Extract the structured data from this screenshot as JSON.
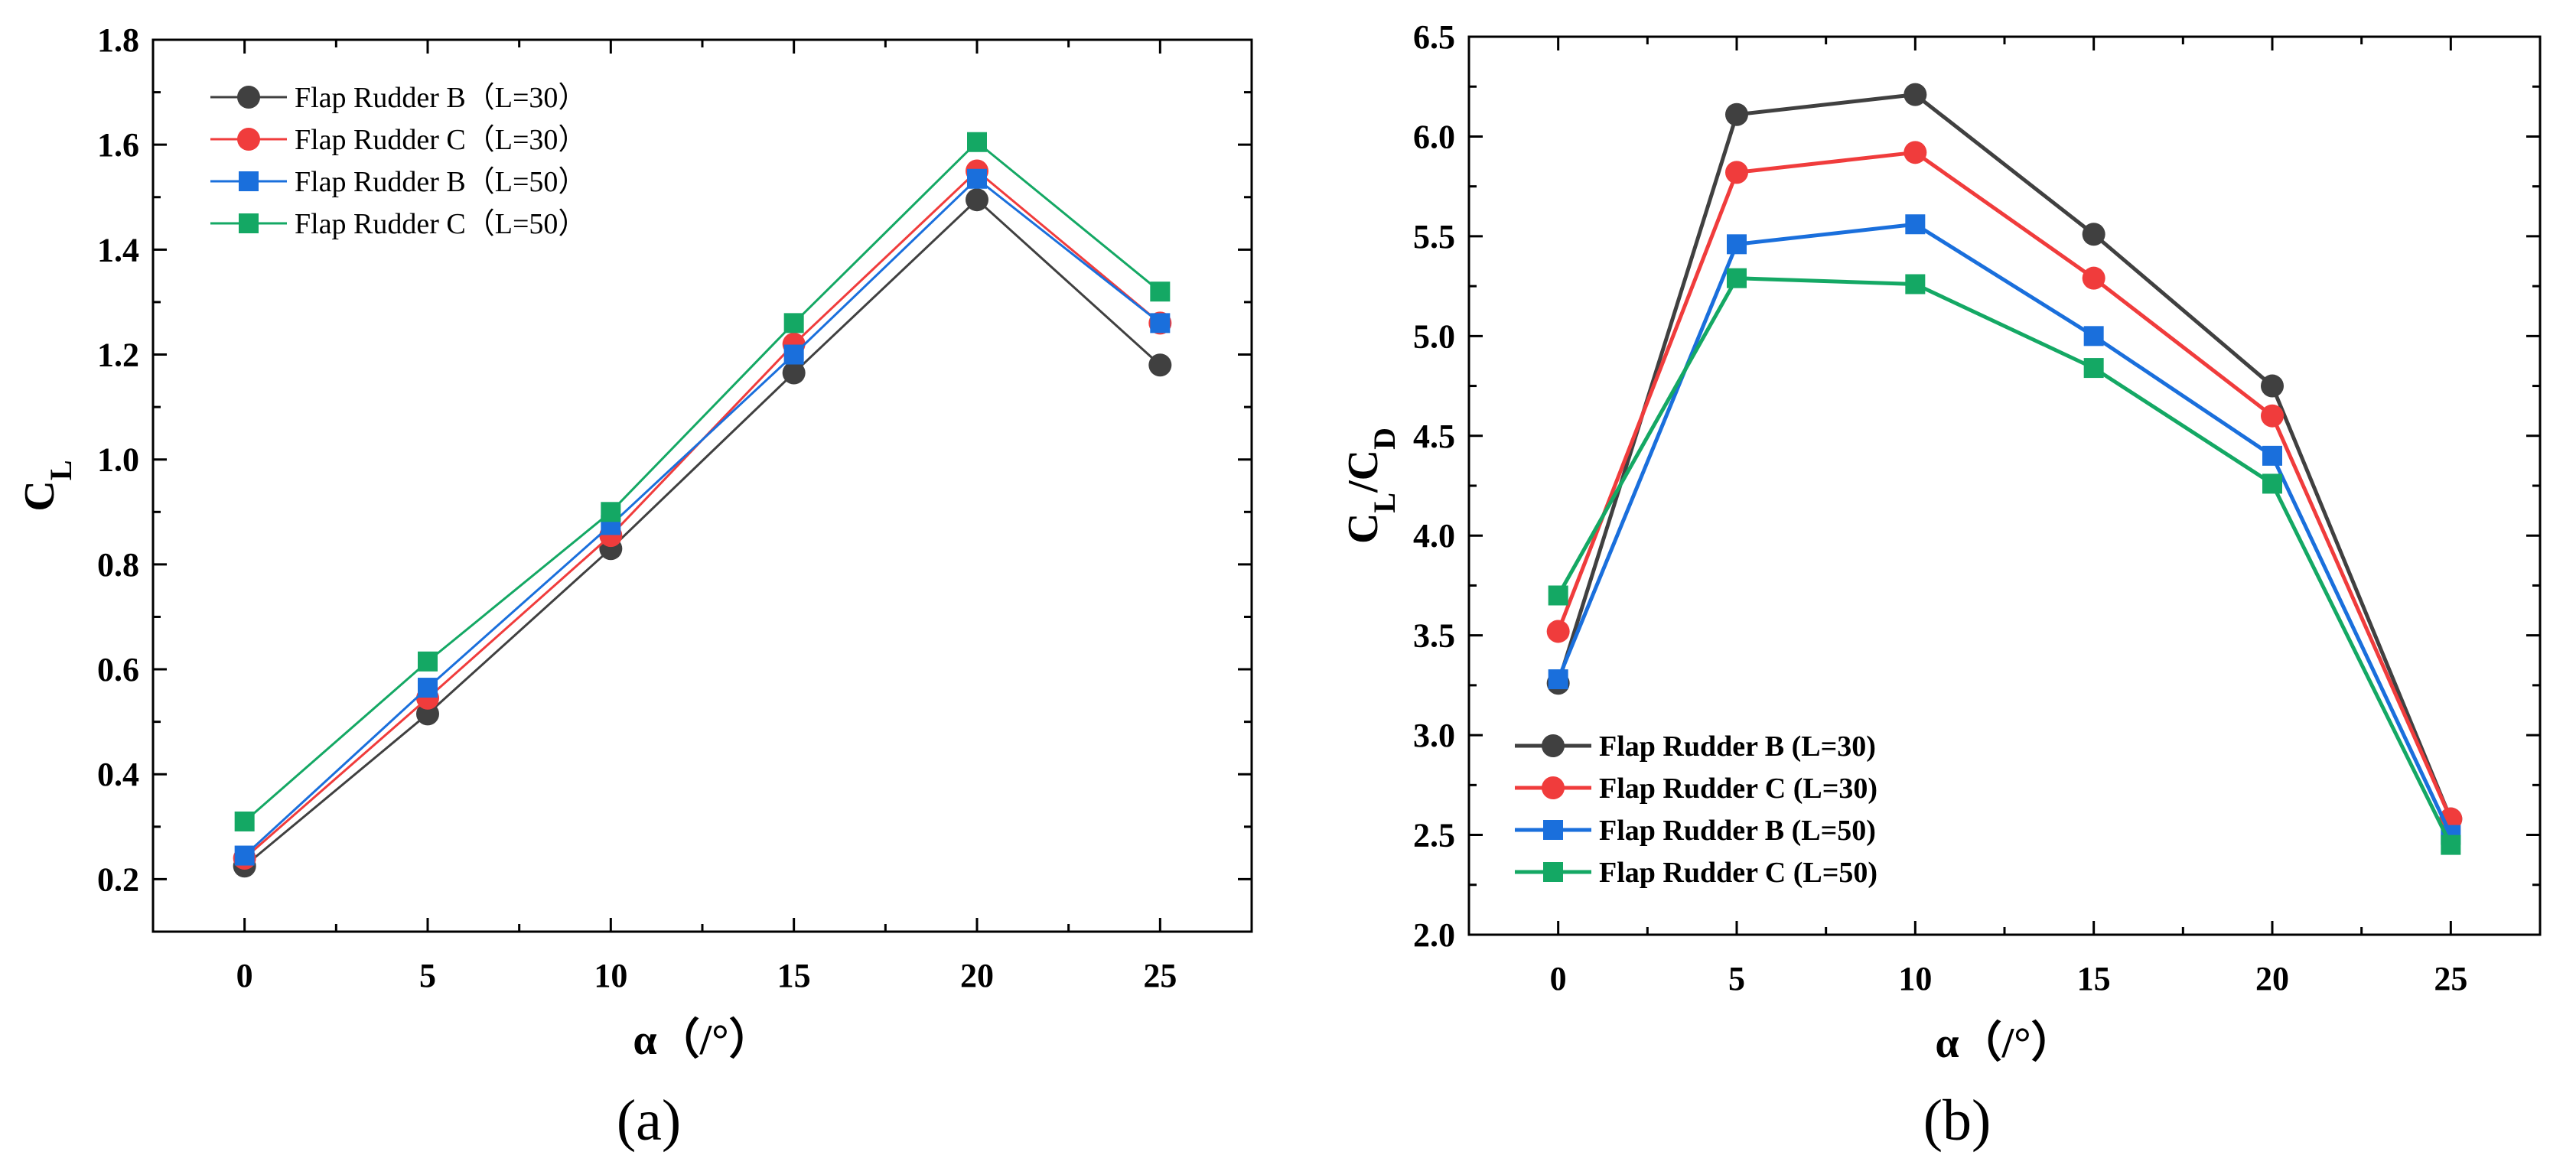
{
  "chart_data": [
    {
      "type": "line",
      "panel_label": "(a)",
      "xlabel": "α（/°）",
      "ylabel_main": "C",
      "ylabel_sub": "L",
      "x": [
        0,
        5,
        10,
        15,
        20,
        25
      ],
      "xticks": [
        "0",
        "5",
        "10",
        "15",
        "20",
        "25"
      ],
      "xlim": [
        -2.5,
        27.5
      ],
      "ylim": [
        0.1,
        1.8
      ],
      "yticks": [
        "0.2",
        "0.4",
        "0.6",
        "0.8",
        "1.0",
        "1.2",
        "1.4",
        "1.6",
        "1.8"
      ],
      "grid": false,
      "legend_position": "top-left",
      "series": [
        {
          "name": "Flap Rudder B（L=30）",
          "color": "#404040",
          "marker": "circle",
          "values": [
            0.225,
            0.515,
            0.83,
            1.165,
            1.495,
            1.18
          ]
        },
        {
          "name": "Flap Rudder C（L=30）",
          "color": "#f03c3c",
          "marker": "circle",
          "values": [
            0.24,
            0.545,
            0.855,
            1.22,
            1.55,
            1.26
          ]
        },
        {
          "name": "Flap Rudder B（L=50）",
          "color": "#1a6fdc",
          "marker": "square",
          "values": [
            0.245,
            0.565,
            0.875,
            1.2,
            1.535,
            1.26
          ]
        },
        {
          "name": "Flap Rudder C（L=50）",
          "color": "#14a864",
          "marker": "square",
          "values": [
            0.31,
            0.615,
            0.9,
            1.26,
            1.605,
            1.32
          ]
        }
      ]
    },
    {
      "type": "line",
      "panel_label": "(b)",
      "xlabel": "α（/°）",
      "ylabel_main": "C",
      "ylabel_sub": "L",
      "ylabel_sep": "/C",
      "ylabel_sub2": "D",
      "x": [
        0,
        5,
        10,
        15,
        20,
        25
      ],
      "xticks": [
        "0",
        "5",
        "10",
        "15",
        "20",
        "25"
      ],
      "xlim": [
        -2.5,
        27.5
      ],
      "ylim": [
        2.0,
        6.5
      ],
      "yticks": [
        "2.0",
        "2.5",
        "3.0",
        "3.5",
        "4.0",
        "4.5",
        "5.0",
        "5.5",
        "6.0",
        "6.5"
      ],
      "grid": false,
      "legend_position": "bottom-left",
      "series": [
        {
          "name": "Flap Rudder B (L=30)",
          "color": "#404040",
          "marker": "circle",
          "values": [
            3.26,
            6.11,
            6.21,
            5.51,
            4.75,
            2.58
          ]
        },
        {
          "name": "Flap Rudder C (L=30)",
          "color": "#f03c3c",
          "marker": "circle",
          "values": [
            3.52,
            5.82,
            5.92,
            5.29,
            4.6,
            2.58
          ]
        },
        {
          "name": "Flap Rudder B (L=50)",
          "color": "#1a6fdc",
          "marker": "square",
          "values": [
            3.28,
            5.46,
            5.56,
            5.0,
            4.4,
            2.5
          ]
        },
        {
          "name": "Flap Rudder C (L=50)",
          "color": "#14a864",
          "marker": "square",
          "values": [
            3.7,
            5.29,
            5.26,
            4.84,
            4.26,
            2.45
          ]
        }
      ]
    }
  ]
}
